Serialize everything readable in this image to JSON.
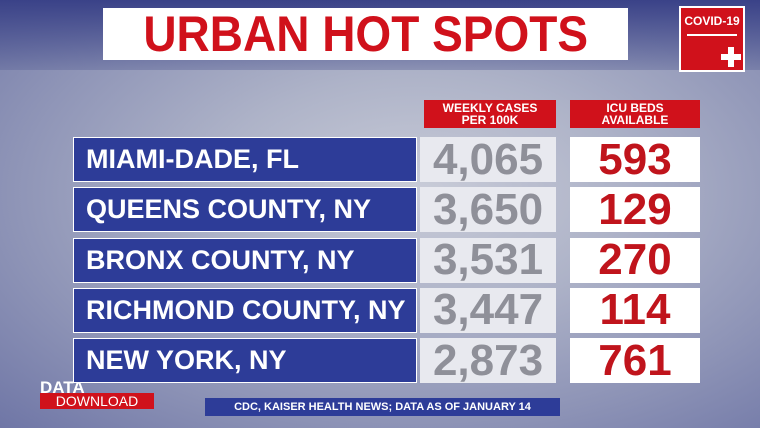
{
  "header": {
    "title": "URBAN HOT SPOTS",
    "badge": "COVID-19"
  },
  "table": {
    "columns": [
      "WEEKLY CASES PER 100K",
      "ICU BEDS AVAILABLE"
    ],
    "rows": [
      [
        "MIAMI-DADE, FL",
        "4,065",
        "593"
      ],
      [
        "QUEENS COUNTY, NY",
        "3,650",
        "129"
      ],
      [
        "BRONX COUNTY, NY",
        "3,531",
        "270"
      ],
      [
        "RICHMOND COUNTY, NY",
        "3,447",
        "114"
      ],
      [
        "NEW YORK, NY",
        "2,873",
        "761"
      ]
    ]
  },
  "footer": {
    "logo_top": "DATA",
    "logo_bottom": "DOWNLOAD",
    "source": "CDC, KAISER HEALTH NEWS; DATA AS OF JANUARY 14"
  }
}
